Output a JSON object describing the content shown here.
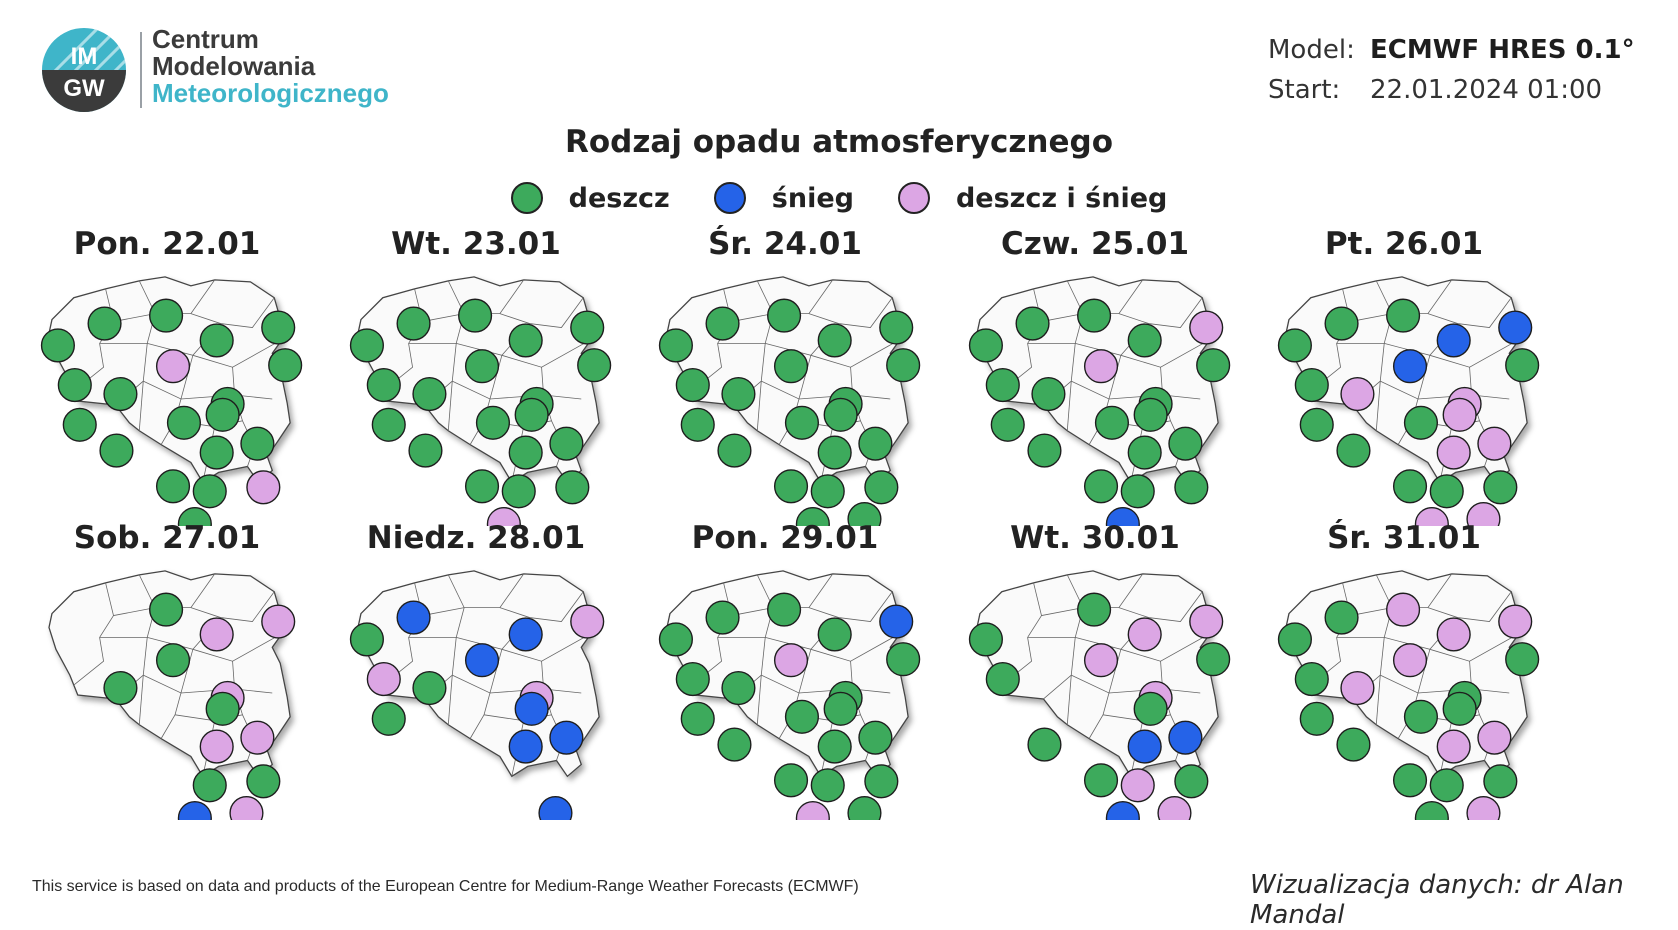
{
  "logo": {
    "badge_top": "IM",
    "badge_bottom": "GW",
    "line1": "Centrum",
    "line2": "Modelowania",
    "line3": "Meteorologicznego",
    "accent_color": "#3fb5c9"
  },
  "meta": {
    "model_label": "Model:",
    "model_value": "ECMWF HRES 0.1°",
    "start_label": "Start:",
    "start_value": "22.01.2024 01:00"
  },
  "title": "Rodzaj opadu atmosferycznego",
  "legend": [
    {
      "key": "rain",
      "label": "deszcz",
      "color": "#3daa5c"
    },
    {
      "key": "snow",
      "label": "śnieg",
      "color": "#2563e8"
    },
    {
      "key": "mix",
      "label": "deszcz i śnieg",
      "color": "#dca6e4"
    }
  ],
  "days": [
    {
      "label": "Pon. 22.01",
      "precip": [
        "rain",
        "rain",
        "rain",
        "rain",
        "rain",
        "rain",
        "rain",
        "mix",
        "rain",
        "rain",
        "rain",
        "rain",
        "rain",
        "rain",
        "rain",
        "rain",
        "rain",
        "rain",
        "mix",
        null,
        "rain"
      ]
    },
    {
      "label": "Wt. 23.01",
      "precip": [
        "rain",
        "rain",
        "rain",
        "rain",
        "rain",
        "rain",
        "rain",
        "rain",
        "rain",
        "rain",
        "rain",
        "rain",
        "rain",
        "rain",
        "rain",
        "rain",
        "rain",
        "rain",
        "rain",
        null,
        "mix"
      ]
    },
    {
      "label": "Śr. 24.01",
      "precip": [
        "rain",
        "rain",
        "rain",
        "rain",
        "rain",
        "rain",
        "rain",
        "rain",
        "rain",
        "rain",
        "rain",
        "rain",
        "rain",
        "rain",
        "rain",
        "rain",
        "rain",
        "rain",
        "rain",
        "rain",
        "rain"
      ]
    },
    {
      "label": "Czw. 25.01",
      "precip": [
        "rain",
        "rain",
        "rain",
        "rain",
        "mix",
        "rain",
        "rain",
        "mix",
        "rain",
        "rain",
        "rain",
        "rain",
        "rain",
        "rain",
        "rain",
        "rain",
        "rain",
        "rain",
        "rain",
        null,
        "snow"
      ]
    },
    {
      "label": "Pt. 26.01",
      "precip": [
        "rain",
        "rain",
        "rain",
        "snow",
        "snow",
        "rain",
        "mix",
        "snow",
        "rain",
        "rain",
        "mix",
        "mix",
        "rain",
        "rain",
        "mix",
        "mix",
        "rain",
        "rain",
        "rain",
        "mix",
        "mix"
      ]
    },
    {
      "label": "Sob. 27.01",
      "precip": [
        null,
        null,
        "rain",
        "mix",
        "mix",
        null,
        "rain",
        "rain",
        null,
        null,
        "mix",
        "rain",
        null,
        null,
        "mix",
        "mix",
        null,
        "rain",
        "rain",
        "mix",
        "snow"
      ]
    },
    {
      "label": "Niedz. 28.01",
      "precip": [
        "rain",
        "snow",
        null,
        "snow",
        "mix",
        "mix",
        "rain",
        "snow",
        null,
        "rain",
        "mix",
        "snow",
        null,
        null,
        "snow",
        "snow",
        null,
        null,
        null,
        "snow",
        null
      ]
    },
    {
      "label": "Pon. 29.01",
      "precip": [
        "rain",
        "rain",
        "rain",
        "rain",
        "snow",
        "rain",
        "rain",
        "mix",
        "rain",
        "rain",
        "rain",
        "rain",
        "rain",
        "rain",
        "rain",
        "rain",
        "rain",
        "rain",
        "rain",
        "rain",
        "mix"
      ]
    },
    {
      "label": "Wt. 30.01",
      "precip": [
        "rain",
        null,
        "rain",
        "mix",
        "mix",
        "rain",
        null,
        "mix",
        "rain",
        null,
        "mix",
        "rain",
        "rain",
        null,
        "snow",
        "snow",
        "rain",
        "mix",
        "rain",
        "mix",
        "snow"
      ]
    },
    {
      "label": "Śr. 31.01",
      "precip": [
        "rain",
        "rain",
        "mix",
        "mix",
        "mix",
        "rain",
        "mix",
        "mix",
        "rain",
        "rain",
        "rain",
        "rain",
        "rain",
        "rain",
        "mix",
        "mix",
        "rain",
        "rain",
        "rain",
        "mix",
        "rain"
      ]
    }
  ],
  "footer": {
    "credit": "This service is based on data and products of the European Centre for Medium-Range Weather Forecasts (ECMWF)",
    "author": "Wizualizacja danych: dr Alan Mandal"
  }
}
